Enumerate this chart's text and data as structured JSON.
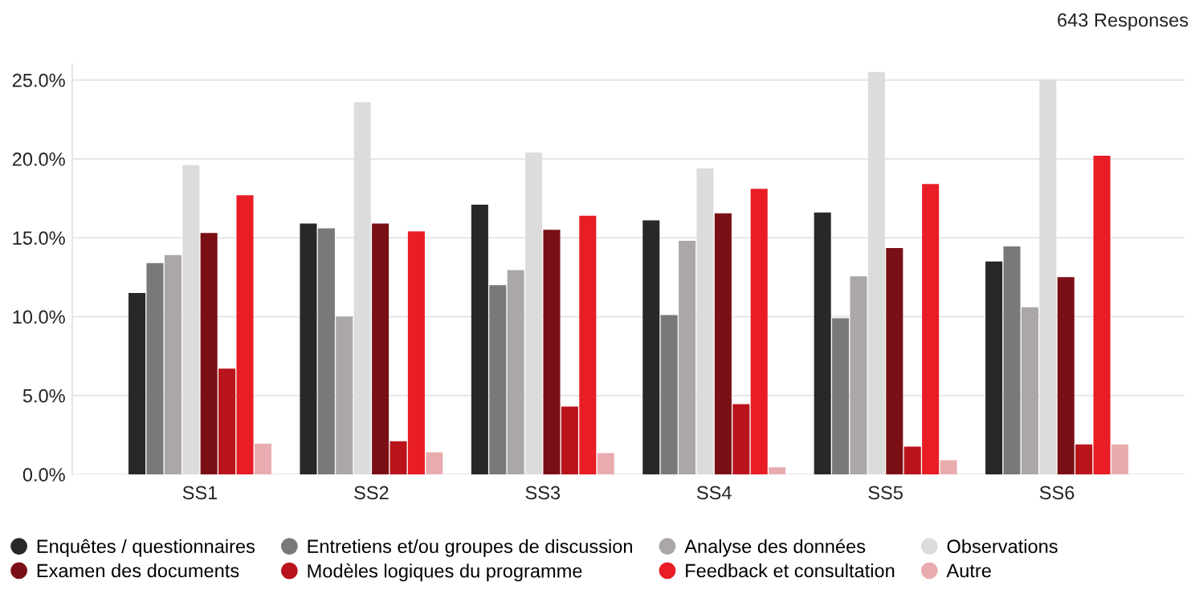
{
  "chart_data": {
    "type": "bar",
    "annotations": [
      "643 Responses"
    ],
    "categories": [
      "SS1",
      "SS2",
      "SS3",
      "SS4",
      "SS5",
      "SS6"
    ],
    "series": [
      {
        "name": "Enquêtes / questionnaires",
        "color": "#282828",
        "values": [
          11.5,
          15.9,
          17.1,
          16.1,
          16.6,
          13.5
        ]
      },
      {
        "name": "Entretiens et/ou groupes de discussion",
        "color": "#797979",
        "values": [
          13.4,
          15.6,
          12.0,
          10.1,
          9.9,
          14.45
        ]
      },
      {
        "name": "Analyse des données",
        "color": "#aba7a6",
        "values": [
          13.9,
          10.0,
          12.95,
          14.8,
          12.55,
          10.6
        ]
      },
      {
        "name": "Observations",
        "color": "#dcdcdc",
        "values": [
          19.6,
          23.6,
          20.4,
          19.4,
          25.5,
          25.0
        ]
      },
      {
        "name": "Examen des documents",
        "color": "#7a1016",
        "values": [
          15.3,
          15.9,
          15.5,
          16.55,
          14.35,
          12.5
        ]
      },
      {
        "name": "Modèles logiques du programme",
        "color": "#b9131b",
        "values": [
          6.7,
          2.1,
          4.3,
          4.45,
          1.76,
          1.9
        ]
      },
      {
        "name": "Feedback et consultation",
        "color": "#e81d25",
        "values": [
          17.7,
          15.4,
          16.4,
          18.1,
          18.4,
          20.2
        ]
      },
      {
        "name": "Autre",
        "color": "#e8acaf",
        "values": [
          1.95,
          1.4,
          1.35,
          0.45,
          0.9,
          1.9
        ]
      }
    ],
    "ylim": [
      0,
      26
    ],
    "yticks": [
      {
        "value": 0,
        "label": "0.0%"
      },
      {
        "value": 5,
        "label": "5.0%"
      },
      {
        "value": 10,
        "label": "10.0%"
      },
      {
        "value": 15,
        "label": "15.0%"
      },
      {
        "value": 20,
        "label": "20.0%"
      },
      {
        "value": 25,
        "label": "25.0%"
      }
    ],
    "grid": "y",
    "legend": "bottom"
  }
}
